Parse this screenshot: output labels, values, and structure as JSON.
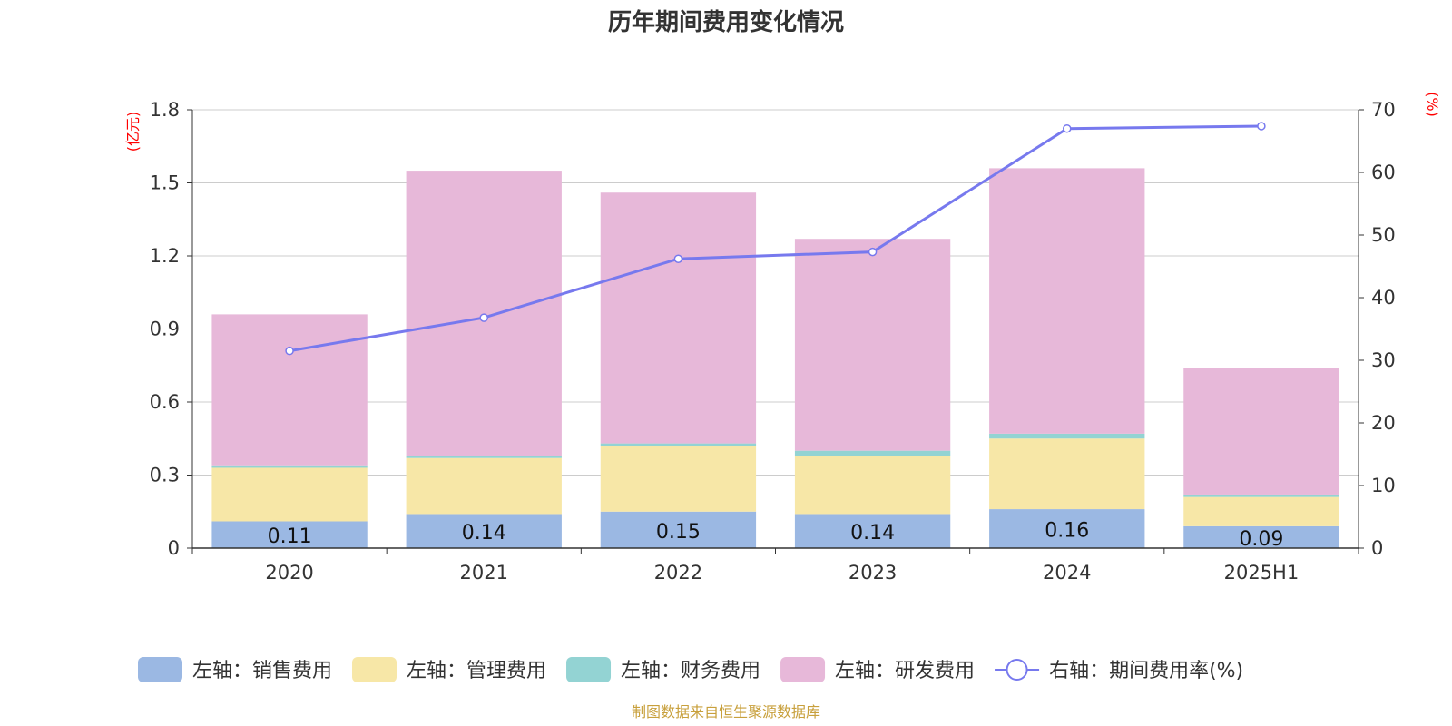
{
  "chart_data": {
    "type": "bar",
    "title": "历年期间费用变化情况",
    "left_unit": "(亿元)",
    "right_unit": "(%)",
    "categories": [
      "2020",
      "2021",
      "2022",
      "2023",
      "2024",
      "2025H1"
    ],
    "left_axis": {
      "min": 0,
      "max": 1.8,
      "ticks": [
        "0",
        "0.3",
        "0.6",
        "0.9",
        "1.2",
        "1.5",
        "1.8"
      ]
    },
    "right_axis": {
      "min": 0,
      "max": 70,
      "ticks": [
        "0",
        "10",
        "20",
        "30",
        "40",
        "50",
        "60",
        "70"
      ]
    },
    "grid": true,
    "series": [
      {
        "name": "左轴：销售费用",
        "type": "bar",
        "stack": true,
        "color": "#9bb8e3",
        "values": [
          0.11,
          0.14,
          0.15,
          0.14,
          0.16,
          0.09
        ],
        "labels": [
          "0.11",
          "0.14",
          "0.15",
          "0.14",
          "0.16",
          "0.09"
        ]
      },
      {
        "name": "左轴：管理费用",
        "type": "bar",
        "stack": true,
        "color": "#f7e7a7",
        "values": [
          0.22,
          0.23,
          0.27,
          0.24,
          0.29,
          0.12
        ]
      },
      {
        "name": "左轴：财务费用",
        "type": "bar",
        "stack": true,
        "color": "#93d3d3",
        "values": [
          0.01,
          0.01,
          0.01,
          0.02,
          0.02,
          0.01
        ]
      },
      {
        "name": "左轴：研发费用",
        "type": "bar",
        "stack": true,
        "color": "#e7b8d9",
        "values": [
          0.62,
          1.17,
          1.03,
          0.87,
          1.09,
          0.52
        ]
      },
      {
        "name": "右轴：期间费用率(%)",
        "type": "line",
        "axis": "right",
        "color": "#7779ee",
        "values": [
          31.5,
          36.8,
          46.2,
          47.3,
          67.0,
          67.4
        ]
      }
    ],
    "legend_position": "bottom",
    "source": "制图数据来自恒生聚源数据库"
  }
}
